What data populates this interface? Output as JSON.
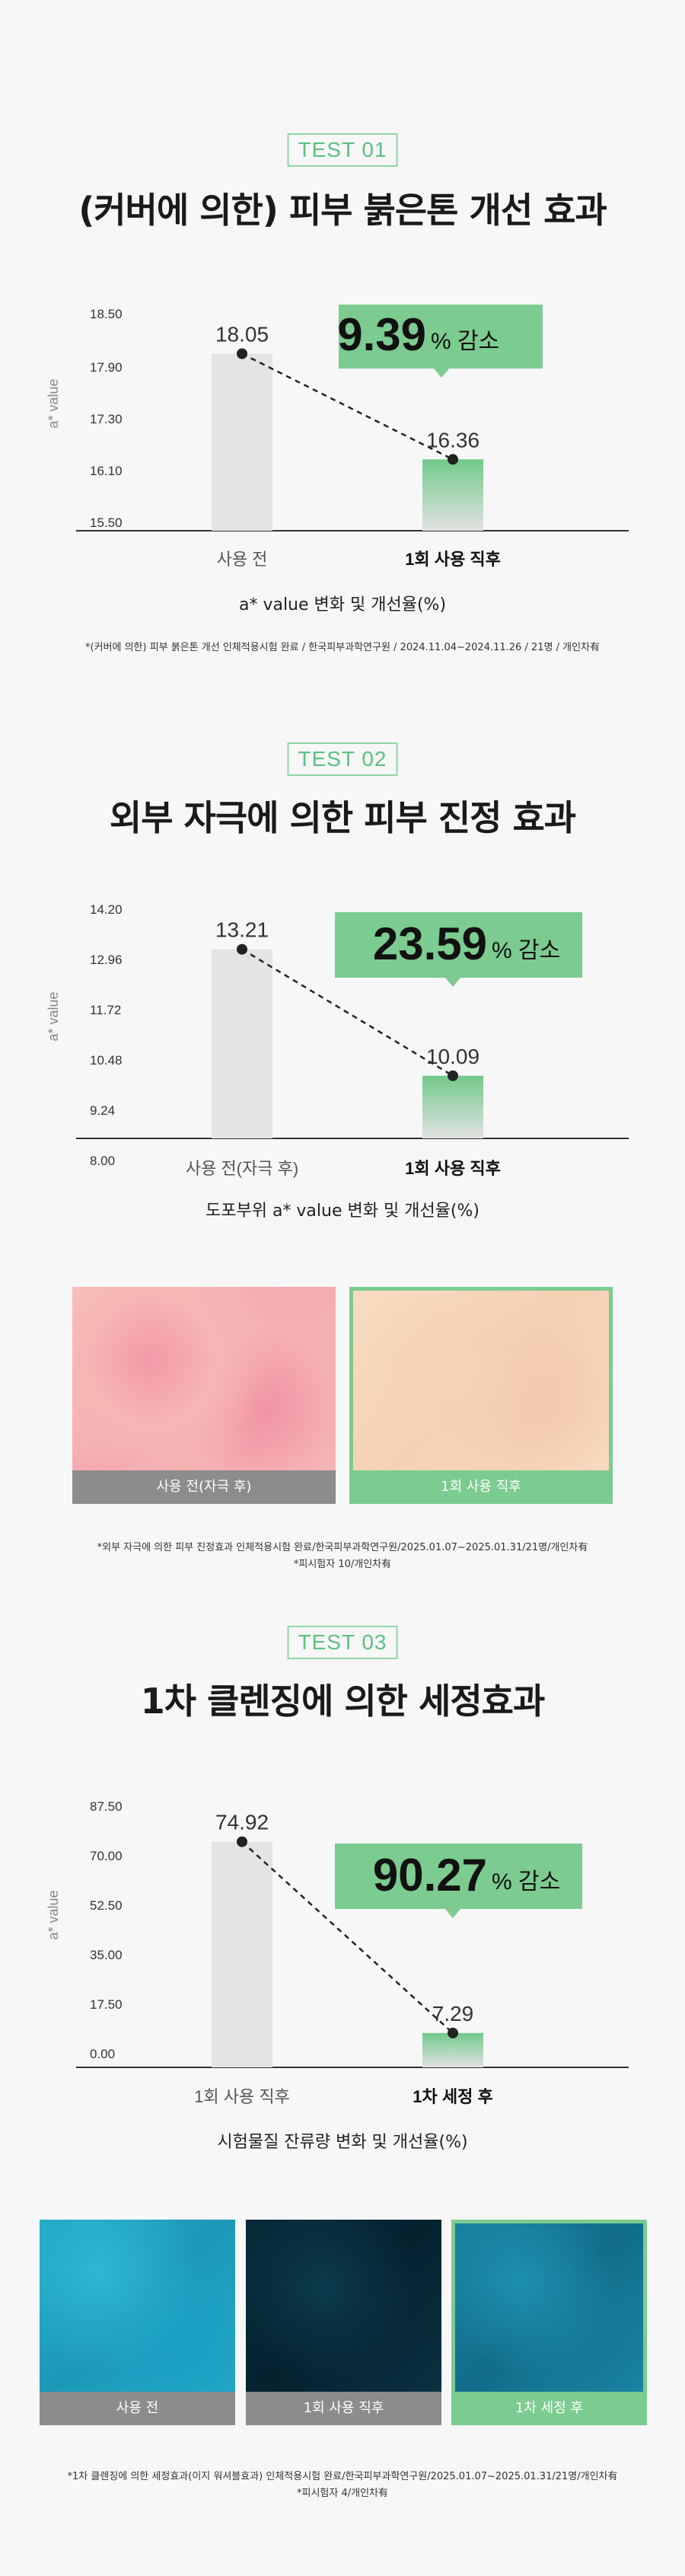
{
  "sections": [
    {
      "badge": "TEST 01",
      "title": "(커버에 의한) 피부 붉은톤 개선 효과",
      "subtitle": "a* value 변화 및 개선율(%)",
      "note_lines": [
        "*(커버에 의한) 피부 붉은톤 개선 인체적용시험 완료 / 한국피부과학연구원 / 2024.11.04~2024.11.26 / 21명 / 개인차有"
      ],
      "reduction_value": "9.39",
      "reduction_unit": "% 감소"
    },
    {
      "badge": "TEST 02",
      "title": "외부 자극에 의한 피부 진정 효과",
      "subtitle": "도포부위 a* value 변화 및 개선율(%)",
      "note_lines": [
        "*외부 자극에 의한 피부 진정효과 인체적용시험 완료/한국피부과학연구원/2025.01.07~2025.01.31/21명/개인차有",
        "*피시험자 10/개인차有"
      ],
      "reduction_value": "23.59",
      "reduction_unit": "% 감소",
      "photos": [
        {
          "caption": "사용 전(자극 후)"
        },
        {
          "caption": "1회 사용 직후"
        }
      ]
    },
    {
      "badge": "TEST 03",
      "title": "1차 클렌징에 의한 세정효과",
      "subtitle": "시험물질 잔류량 변화 및 개선율(%)",
      "note_lines": [
        "*1차 클렌징에 의한 세정효과(이지 워셔블효과) 인체적용시험 완료/한국피부과학연구원/2025.01.07~2025.01.31/21명/개인차有",
        "*피시험자 4/개인차有"
      ],
      "reduction_value": "90.27",
      "reduction_unit": "% 감소",
      "photos": [
        {
          "caption": "사용 전"
        },
        {
          "caption": "1회 사용 직후"
        },
        {
          "caption": "1차 세정 후"
        }
      ]
    }
  ],
  "chart_data": [
    {
      "type": "bar",
      "ylabel": "a* value",
      "ticks": [
        "18.50",
        "17.90",
        "17.30",
        "16.10",
        "15.50"
      ],
      "categories": [
        "사용 전",
        "1회 사용 직후"
      ],
      "values": [
        18.05,
        16.36
      ],
      "value_labels": [
        "18.05",
        "16.36"
      ],
      "reduction_pct": 9.39
    },
    {
      "type": "bar",
      "ylabel": "a* value",
      "ticks": [
        "14.20",
        "12.96",
        "11.72",
        "10.48",
        "9.24",
        "8.00"
      ],
      "categories": [
        "사용 전(자극 후)",
        "1회 사용 직후"
      ],
      "values": [
        13.21,
        10.09
      ],
      "value_labels": [
        "13.21",
        "10.09"
      ],
      "reduction_pct": 23.59
    },
    {
      "type": "bar",
      "ylabel": "a* value",
      "ticks": [
        "87.50",
        "70.00",
        "52.50",
        "35.00",
        "17.50",
        "0.00"
      ],
      "categories": [
        "1회 사용 직후",
        "1차 세정 후"
      ],
      "values": [
        74.92,
        7.29
      ],
      "value_labels": [
        "74.92",
        "7.29"
      ],
      "reduction_pct": 90.27
    }
  ],
  "colors": {
    "accent": "#7ccb90",
    "badge_border": "#8fd7a4",
    "bar_before": "#e4e4e4",
    "photo_caption_gray": "#8c8c8c"
  }
}
